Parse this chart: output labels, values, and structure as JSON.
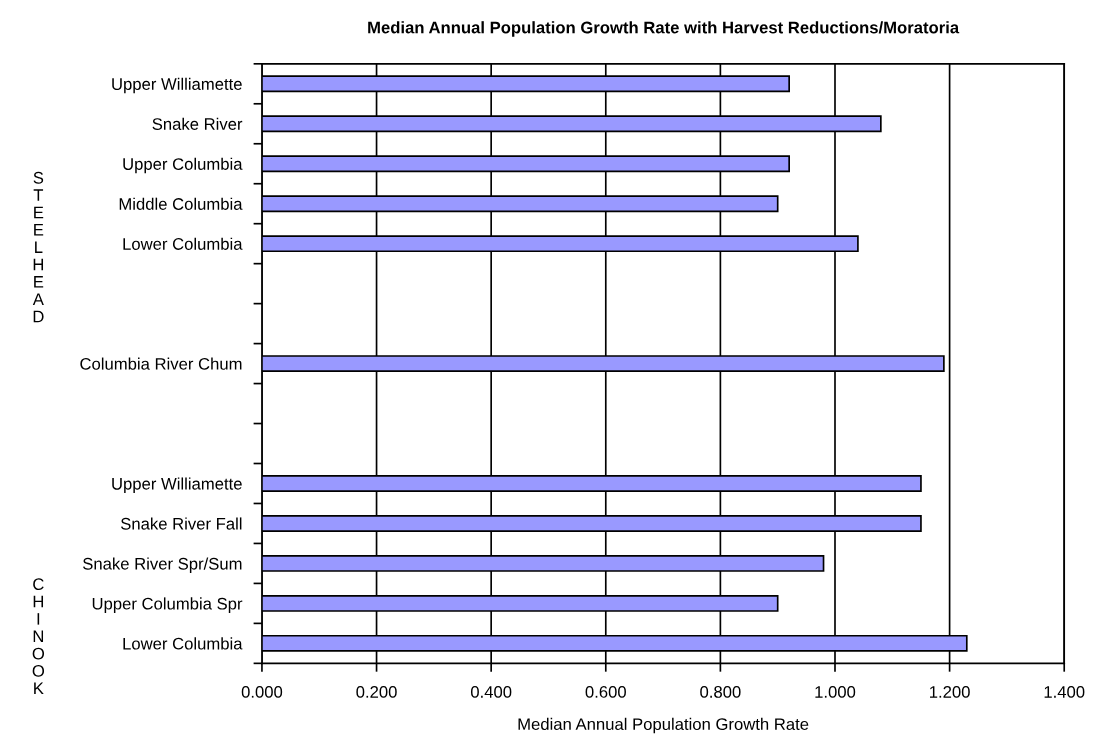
{
  "chart_data": {
    "type": "bar",
    "orientation": "horizontal",
    "title": "Median Annual Population Growth Rate with Harvest Reductions/Moratoria",
    "xlabel": "Median Annual Population Growth Rate",
    "categories": [
      "Upper Williamette",
      "Snake River",
      "Upper Columbia",
      "Middle Columbia",
      "Lower Columbia",
      null,
      null,
      "Columbia River Chum",
      null,
      null,
      "Upper Williamette",
      "Snake River Fall",
      "Snake River Spr/Sum",
      "Upper Columbia Spr",
      "Lower Columbia"
    ],
    "values": [
      0.92,
      1.08,
      0.92,
      0.9,
      1.04,
      null,
      null,
      1.19,
      null,
      null,
      1.15,
      1.15,
      0.98,
      0.9,
      1.23
    ],
    "color": "#9999ff",
    "xlim": [
      0,
      1.4
    ],
    "xticks": [
      {
        "value": 0,
        "label": "0.000"
      },
      {
        "value": 0.2,
        "label": "0.200"
      },
      {
        "value": 0.4,
        "label": "0.400"
      },
      {
        "value": 0.6,
        "label": "0.600"
      },
      {
        "value": 0.8,
        "label": "0.800"
      },
      {
        "value": 1.0,
        "label": "1.000"
      },
      {
        "value": 1.2,
        "label": "1.200"
      },
      {
        "value": 1.4,
        "label": "1.400"
      }
    ],
    "grid": "x",
    "legend": false,
    "annotations": [
      "STEELHEAD",
      "CHINOOK"
    ]
  }
}
